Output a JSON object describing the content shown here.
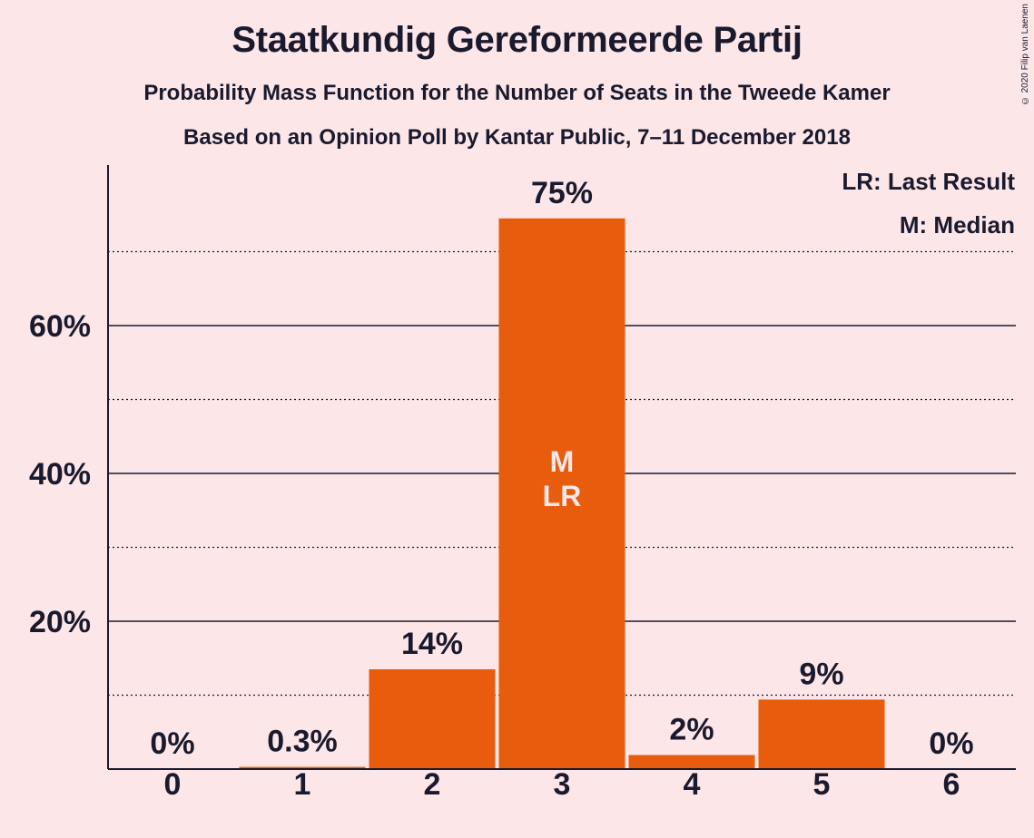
{
  "chart_data": {
    "type": "bar",
    "title": "Staatkundig Gereformeerde Partij",
    "subtitle": "Probability Mass Function for the Number of Seats in the Tweede Kamer",
    "subtitle2": "Based on an Opinion Poll by Kantar Public, 7–11 December 2018",
    "categories": [
      "0",
      "1",
      "2",
      "3",
      "4",
      "5",
      "6"
    ],
    "values": [
      0,
      0.3,
      13.5,
      74.5,
      1.9,
      9.4,
      0
    ],
    "data_labels": [
      "0%",
      "0.3%",
      "14%",
      "75%",
      "2%",
      "9%",
      "0%"
    ],
    "ylim": [
      0,
      80
    ],
    "y_ticks": [
      {
        "value": 20,
        "label": "20%"
      },
      {
        "value": 40,
        "label": "40%"
      },
      {
        "value": 60,
        "label": "60%"
      }
    ],
    "minor_gridlines": [
      10,
      30,
      50,
      70
    ],
    "inner_labels": {
      "category": "3",
      "lines": [
        "M",
        "LR"
      ]
    },
    "legend": [
      "LR: Last Result",
      "M: Median"
    ],
    "legend_position": "top-right",
    "xlabel": "",
    "ylabel": "",
    "grid": true,
    "bar_color": "#e85c0d",
    "background": "#fce6e8",
    "inner_label_color": "#fce6e8"
  },
  "copyright": "© 2020 Filip van Laenen"
}
